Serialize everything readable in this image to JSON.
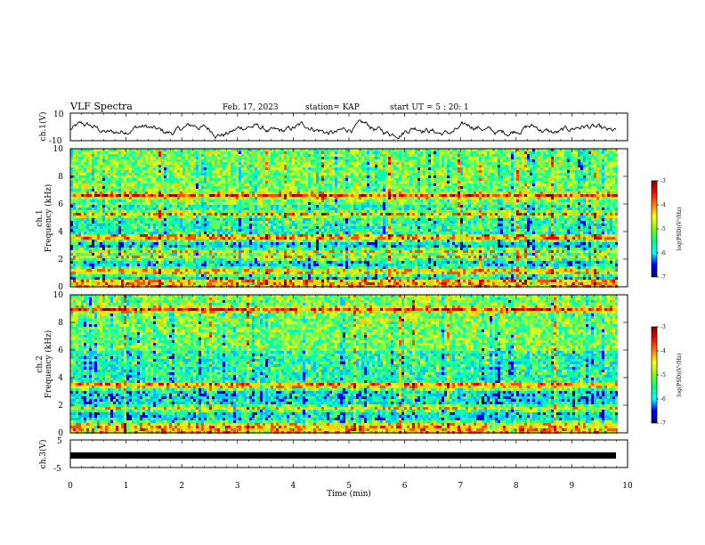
{
  "header": {
    "title": "VLF Spectra",
    "date": "Feb. 17, 2023",
    "station": "station= KAP",
    "start_time": "start UT =  5 : 20: 1"
  },
  "chart_data": [
    {
      "type": "line",
      "name": "ch1-waveform",
      "ylabel": "ch.1(V)",
      "ylim": [
        -10,
        10
      ],
      "yticks": [
        "10",
        "-10"
      ],
      "xlim": [
        0,
        10
      ]
    },
    {
      "type": "heatmap",
      "name": "ch1-spectrogram",
      "ylabel": "ch.1\nFrequency (kHz)",
      "ylim": [
        0,
        10
      ],
      "yticks": [
        "0",
        "2",
        "4",
        "6",
        "8",
        "10"
      ],
      "xlim": [
        0,
        10
      ],
      "colorbar": {
        "label": "log(PSD)(V²/Hz)",
        "range": [
          -7,
          -3
        ],
        "ticks": [
          "-3",
          "-4",
          "-5",
          "-6",
          "-7"
        ]
      },
      "colors": [
        "#00007f",
        "#0000ff",
        "#00c0ff",
        "#00ffb0",
        "#60ff60",
        "#d0ff20",
        "#ffd000",
        "#ff5000",
        "#e00000",
        "#800000"
      ]
    },
    {
      "type": "heatmap",
      "name": "ch2-spectrogram",
      "ylabel": "ch.2\nFrequency (kHz)",
      "ylim": [
        0,
        10
      ],
      "yticks": [
        "0",
        "2",
        "4",
        "6",
        "8",
        "10"
      ],
      "xlim": [
        0,
        10
      ],
      "colorbar": {
        "label": "log(PSD)(V²/Hz)",
        "range": [
          -7,
          -3
        ],
        "ticks": [
          "-3",
          "-4",
          "-5",
          "-6",
          "-7"
        ]
      },
      "colors": [
        "#00007f",
        "#0000ff",
        "#00c0ff",
        "#00ffb0",
        "#60ff60",
        "#d0ff20",
        "#ffd000",
        "#ff5000",
        "#e00000",
        "#800000"
      ]
    },
    {
      "type": "line",
      "name": "ch3-waveform",
      "ylabel": "ch.3(V)",
      "ylim": [
        -5,
        5
      ],
      "yticks": [
        "5",
        "-5"
      ],
      "xlim": [
        0,
        10
      ],
      "xlabel": "Time (min)",
      "xticks": [
        "0",
        "1",
        "2",
        "3",
        "4",
        "5",
        "6",
        "7",
        "8",
        "9",
        "10"
      ]
    }
  ]
}
